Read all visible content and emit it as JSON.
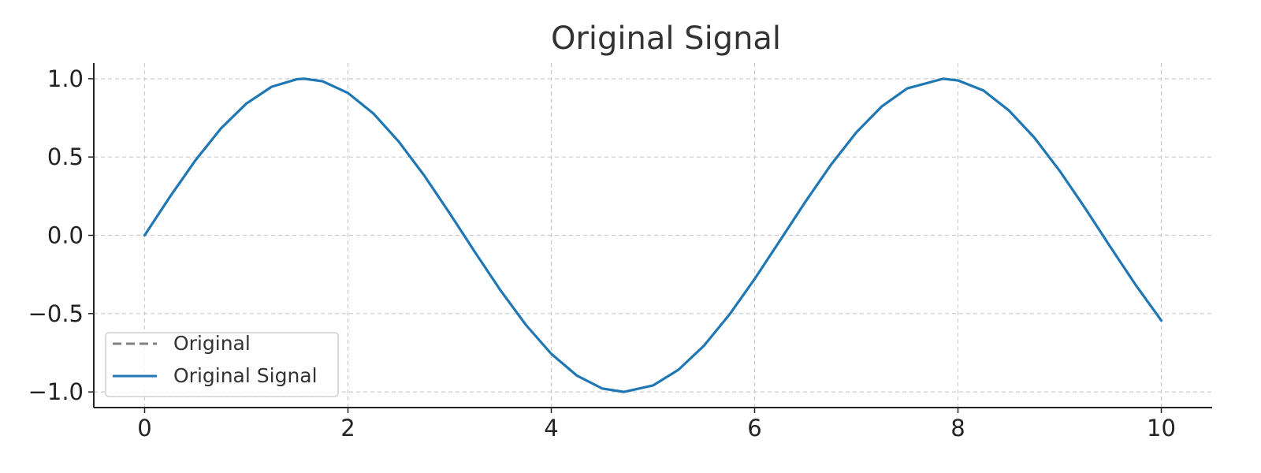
{
  "chart_data": {
    "type": "line",
    "title": "Original Signal",
    "xlabel": "",
    "ylabel": "",
    "xlim": [
      -0.5,
      10.5
    ],
    "ylim": [
      -1.1,
      1.1
    ],
    "x_ticks": [
      0,
      2,
      4,
      6,
      8,
      10
    ],
    "y_ticks": [
      1.0,
      0.5,
      0.0,
      -0.5,
      -1.0
    ],
    "x_tick_labels": [
      "0",
      "2",
      "4",
      "6",
      "8",
      "10"
    ],
    "y_tick_labels": [
      "1.0",
      "0.5",
      "0.0",
      "−0.5",
      "−1.0"
    ],
    "grid": true,
    "legend_position": "lower-left",
    "legend": [
      {
        "label": "Original",
        "color": "#808080",
        "style": "dashed"
      },
      {
        "label": "Original Signal",
        "color": "#1f77b4",
        "style": "solid"
      }
    ],
    "series": [
      {
        "name": "Original Signal",
        "color": "#1f77b4",
        "x": [
          0.0,
          0.25,
          0.5,
          0.75,
          1.0,
          1.25,
          1.5,
          1.5708,
          1.75,
          2.0,
          2.25,
          2.5,
          2.75,
          3.0,
          3.1416,
          3.25,
          3.5,
          3.75,
          4.0,
          4.25,
          4.5,
          4.7124,
          5.0,
          5.25,
          5.5,
          5.75,
          6.0,
          6.2832,
          6.5,
          6.75,
          7.0,
          7.25,
          7.5,
          7.854,
          8.0,
          8.25,
          8.5,
          8.75,
          9.0,
          9.25,
          9.4248,
          9.5,
          9.75,
          10.0
        ],
        "y": [
          0.0,
          0.247,
          0.479,
          0.682,
          0.841,
          0.949,
          0.997,
          1.0,
          0.984,
          0.909,
          0.778,
          0.598,
          0.382,
          0.141,
          0.0,
          -0.108,
          -0.351,
          -0.572,
          -0.757,
          -0.895,
          -0.978,
          -1.0,
          -0.959,
          -0.859,
          -0.706,
          -0.508,
          -0.279,
          0.0,
          0.215,
          0.45,
          0.657,
          0.823,
          0.938,
          1.0,
          0.989,
          0.925,
          0.798,
          0.625,
          0.412,
          0.174,
          0.0,
          -0.075,
          -0.319,
          -0.544
        ]
      }
    ]
  }
}
